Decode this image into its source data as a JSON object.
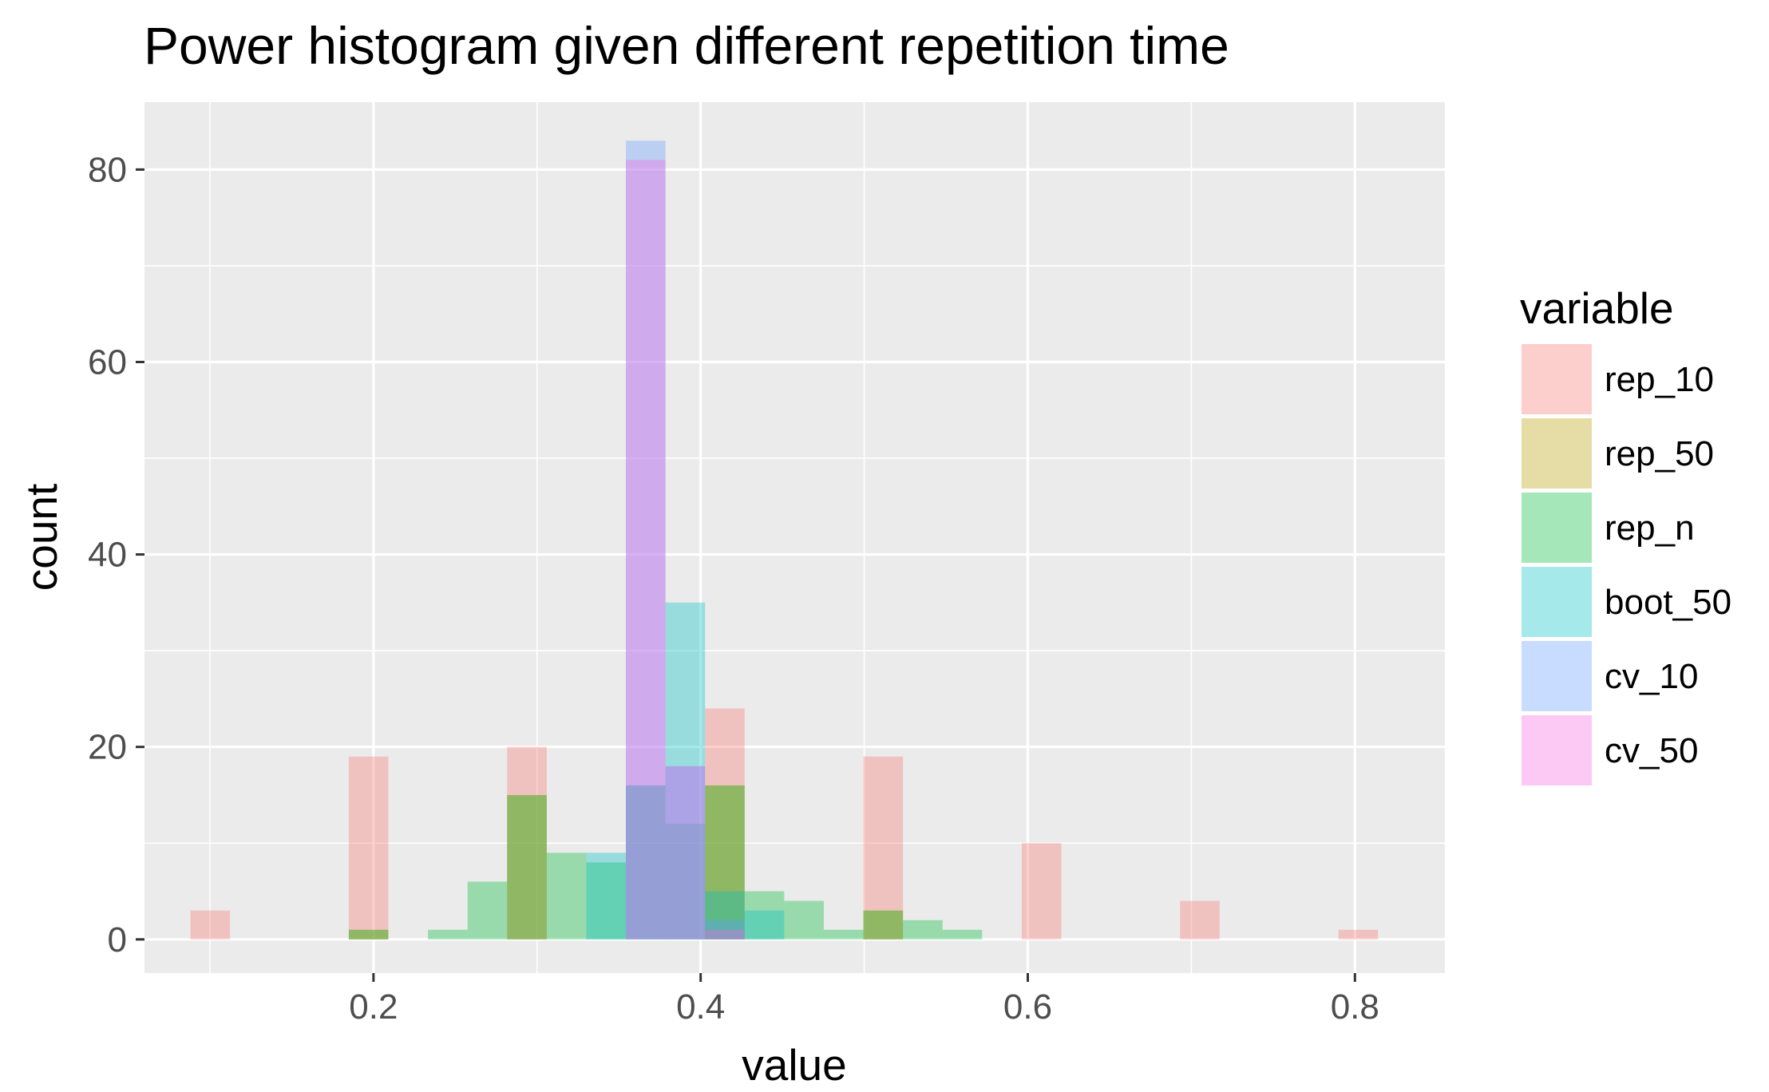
{
  "chart_data": {
    "type": "bar",
    "title": "Power histogram given different repetition time",
    "xlabel": "value",
    "ylabel": "count",
    "xlim": [
      0.06,
      0.855
    ],
    "ylim": [
      -3.5,
      87
    ],
    "x_ticks": [
      0.2,
      0.4,
      0.6,
      0.8
    ],
    "x_tick_labels": [
      "0.2",
      "0.4",
      "0.6",
      "0.8"
    ],
    "y_ticks": [
      0,
      20,
      40,
      60,
      80
    ],
    "y_tick_labels": [
      "0",
      "20",
      "40",
      "60",
      "80"
    ],
    "grid": true,
    "bin_width": 0.0242,
    "legend": {
      "title": "variable",
      "position": "right"
    },
    "series": [
      {
        "name": "rep_10",
        "color": "#F8766D",
        "bins": [
          {
            "x0": 0.0881,
            "x1": 0.1123,
            "count": 3
          },
          {
            "x0": 0.1849,
            "x1": 0.2091,
            "count": 19
          },
          {
            "x0": 0.2817,
            "x1": 0.3059,
            "count": 20
          },
          {
            "x0": 0.4027,
            "x1": 0.4269,
            "count": 24
          },
          {
            "x0": 0.4995,
            "x1": 0.5237,
            "count": 19
          },
          {
            "x0": 0.5963,
            "x1": 0.6205,
            "count": 10
          },
          {
            "x0": 0.6931,
            "x1": 0.7173,
            "count": 4
          },
          {
            "x0": 0.7899,
            "x1": 0.8141,
            "count": 1
          }
        ]
      },
      {
        "name": "rep_50",
        "color": "#B79F00",
        "bins": [
          {
            "x0": 0.1849,
            "x1": 0.2091,
            "count": 1
          },
          {
            "x0": 0.2817,
            "x1": 0.3059,
            "count": 15
          },
          {
            "x0": 0.4027,
            "x1": 0.4269,
            "count": 16
          },
          {
            "x0": 0.4995,
            "x1": 0.5237,
            "count": 3
          }
        ]
      },
      {
        "name": "rep_n",
        "color": "#00BA38",
        "bins": [
          {
            "x0": 0.1849,
            "x1": 0.2091,
            "count": 1
          },
          {
            "x0": 0.2333,
            "x1": 0.2575,
            "count": 1
          },
          {
            "x0": 0.2575,
            "x1": 0.2817,
            "count": 6
          },
          {
            "x0": 0.2817,
            "x1": 0.3059,
            "count": 15
          },
          {
            "x0": 0.3059,
            "x1": 0.3301,
            "count": 9
          },
          {
            "x0": 0.3301,
            "x1": 0.3543,
            "count": 8
          },
          {
            "x0": 0.3543,
            "x1": 0.3785,
            "count": 16
          },
          {
            "x0": 0.3785,
            "x1": 0.4027,
            "count": 12
          },
          {
            "x0": 0.4027,
            "x1": 0.4269,
            "count": 16
          },
          {
            "x0": 0.4269,
            "x1": 0.4511,
            "count": 5
          },
          {
            "x0": 0.4511,
            "x1": 0.4753,
            "count": 4
          },
          {
            "x0": 0.4753,
            "x1": 0.4995,
            "count": 1
          },
          {
            "x0": 0.4995,
            "x1": 0.5237,
            "count": 3
          },
          {
            "x0": 0.5237,
            "x1": 0.5479,
            "count": 2
          },
          {
            "x0": 0.5479,
            "x1": 0.5721,
            "count": 1
          }
        ]
      },
      {
        "name": "boot_50",
        "color": "#00BFC4",
        "bins": [
          {
            "x0": 0.3301,
            "x1": 0.3543,
            "count": 9
          },
          {
            "x0": 0.3543,
            "x1": 0.3785,
            "count": 16
          },
          {
            "x0": 0.3785,
            "x1": 0.4027,
            "count": 35
          },
          {
            "x0": 0.4027,
            "x1": 0.4269,
            "count": 5
          },
          {
            "x0": 0.4269,
            "x1": 0.4511,
            "count": 3
          }
        ]
      },
      {
        "name": "cv_10",
        "color": "#619CFF",
        "bins": [
          {
            "x0": 0.3543,
            "x1": 0.3785,
            "count": 83
          },
          {
            "x0": 0.3785,
            "x1": 0.4027,
            "count": 18
          },
          {
            "x0": 0.4027,
            "x1": 0.4269,
            "count": 2
          }
        ]
      },
      {
        "name": "cv_50",
        "color": "#F564E3",
        "bins": [
          {
            "x0": 0.3543,
            "x1": 0.3785,
            "count": 81
          },
          {
            "x0": 0.3785,
            "x1": 0.4027,
            "count": 18
          },
          {
            "x0": 0.4027,
            "x1": 0.4269,
            "count": 1
          }
        ]
      }
    ]
  }
}
